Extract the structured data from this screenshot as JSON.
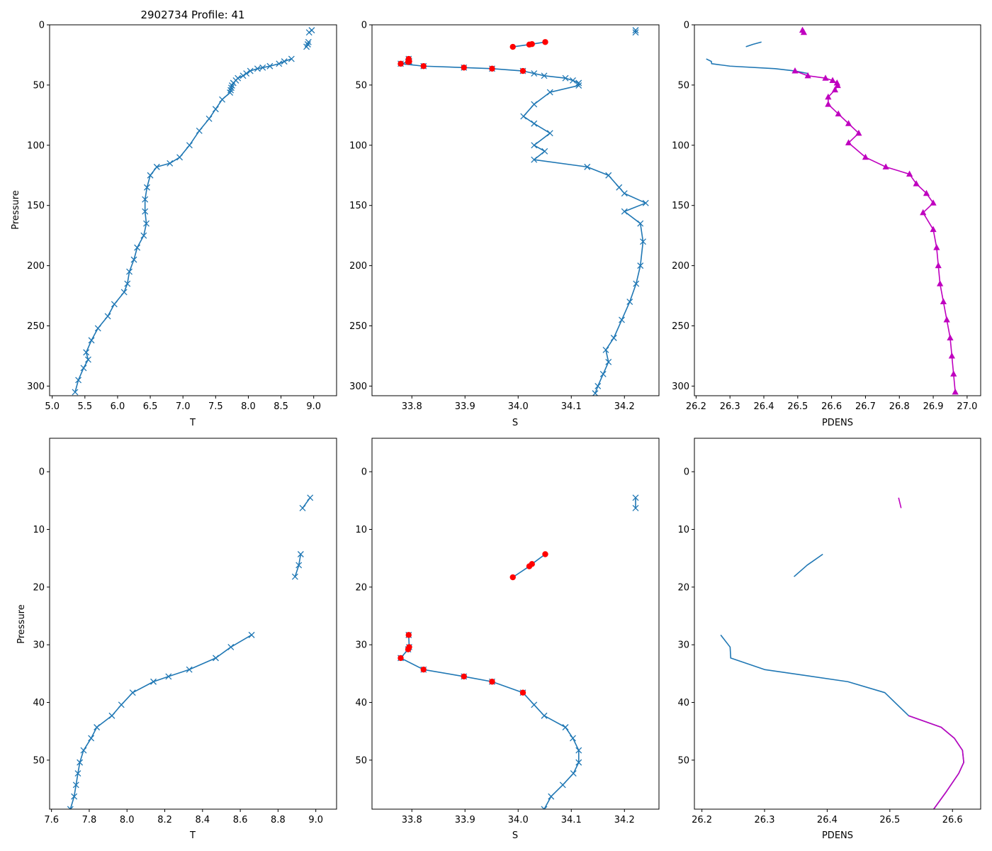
{
  "figure": {
    "colors": {
      "blue": "#1f77b4",
      "red": "#ff0000",
      "magenta": "#bf00bf"
    }
  },
  "chart_data": [
    {
      "id": "top-T",
      "type": "line",
      "title": "2902734 Profile: 41",
      "xlabel": "T",
      "ylabel": "Pressure",
      "xlim": [
        4.96,
        9.35
      ],
      "ylim": [
        308,
        0
      ],
      "y_inverted": true,
      "xticks": [
        5.0,
        5.5,
        6.0,
        6.5,
        7.0,
        7.5,
        8.0,
        8.5,
        9.0
      ],
      "yticks": [
        0,
        50,
        100,
        150,
        200,
        250,
        300
      ],
      "series": [
        {
          "name": "T (upper segment)",
          "marker": "x",
          "color": "#1f77b4",
          "x": [
            8.97,
            8.93
          ],
          "y": [
            4.5,
            6.3
          ]
        },
        {
          "name": "T (segment)",
          "marker": "x",
          "color": "#1f77b4",
          "x": [
            8.92,
            8.91,
            8.89
          ],
          "y": [
            14.3,
            16.2,
            18.2
          ]
        },
        {
          "name": "T",
          "marker": "x",
          "color": "#1f77b4",
          "x": [
            8.66,
            8.55,
            8.47,
            8.33,
            8.22,
            8.14,
            8.03,
            7.97,
            7.92,
            7.84,
            7.81,
            7.77,
            7.75,
            7.74,
            7.73,
            7.72,
            7.6,
            7.5,
            7.4,
            7.25,
            7.1,
            6.95,
            6.8,
            6.6,
            6.5,
            6.45,
            6.42,
            6.42,
            6.44,
            6.4,
            6.3,
            6.25,
            6.18,
            6.15,
            6.1,
            5.95,
            5.85,
            5.7,
            5.6,
            5.52,
            5.55,
            5.48,
            5.4,
            5.35
          ],
          "y": [
            28.3,
            30.4,
            32.3,
            34.3,
            35.5,
            36.4,
            38.3,
            40.4,
            42.3,
            44.3,
            46.2,
            48.3,
            50.4,
            52.3,
            54.3,
            56.3,
            62,
            70,
            78,
            88,
            100,
            110,
            115,
            118,
            125,
            135,
            145,
            155,
            165,
            175,
            185,
            195,
            205,
            215,
            222,
            232,
            242,
            252,
            262,
            272,
            278,
            285,
            295,
            305
          ]
        }
      ]
    },
    {
      "id": "top-S",
      "type": "line",
      "title": "",
      "xlabel": "S",
      "ylabel": "",
      "xlim": [
        33.725,
        34.265
      ],
      "ylim": [
        308,
        0
      ],
      "y_inverted": true,
      "xticks": [
        33.8,
        33.9,
        34.0,
        34.1,
        34.2
      ],
      "yticks": [
        0,
        50,
        100,
        150,
        200,
        250,
        300
      ],
      "series": [
        {
          "name": "S (upper segment)",
          "marker": "x",
          "color": "#1f77b4",
          "x": [
            34.221,
            34.221
          ],
          "y": [
            4.5,
            6.3
          ]
        },
        {
          "name": "S (flagged segment)",
          "marker": "o",
          "color": "#ff0000",
          "x": [
            34.051,
            34.026,
            34.021,
            33.99
          ],
          "y": [
            14.3,
            16.0,
            16.4,
            18.3
          ]
        },
        {
          "name": "S",
          "marker": "x",
          "color": "#1f77b4",
          "x": [
            33.794,
            33.795,
            33.793,
            33.779,
            33.822,
            33.898,
            33.951,
            34.009,
            34.03,
            34.049,
            34.089,
            34.103,
            34.114,
            34.114,
            34.06,
            34.03,
            34.01,
            34.03,
            34.06,
            34.03,
            34.05,
            34.03,
            34.13,
            34.17,
            34.19,
            34.2,
            34.24,
            34.2,
            34.23,
            34.235,
            34.23,
            34.222,
            34.21,
            34.195,
            34.18,
            34.165,
            34.17,
            34.16,
            34.15,
            34.145
          ],
          "y": [
            28.3,
            30.4,
            30.8,
            32.3,
            34.3,
            35.5,
            36.4,
            38.3,
            40.4,
            42.3,
            44.3,
            46.2,
            48.3,
            50.4,
            56,
            66,
            76,
            82,
            90,
            100,
            105,
            112,
            118,
            125,
            135,
            140,
            148,
            155,
            165,
            180,
            200,
            215,
            230,
            245,
            260,
            270,
            280,
            290,
            300,
            306
          ],
          "flagged": [
            0,
            1,
            2,
            3,
            4,
            5,
            6,
            7
          ]
        }
      ]
    },
    {
      "id": "top-PDENS",
      "type": "line",
      "title": "",
      "xlabel": "PDENS",
      "ylabel": "",
      "xlim": [
        26.195,
        27.04
      ],
      "ylim": [
        308,
        0
      ],
      "y_inverted": true,
      "xticks": [
        26.2,
        26.3,
        26.4,
        26.5,
        26.6,
        26.7,
        26.8,
        26.9,
        27.0
      ],
      "yticks": [
        0,
        50,
        100,
        150,
        200,
        250,
        300
      ],
      "series": [
        {
          "name": "PDENS (upper segment)",
          "marker": "^",
          "color": "#bf00bf",
          "x": [
            26.514,
            26.518
          ],
          "y": [
            4.5,
            6.3
          ]
        },
        {
          "name": "PDENS (segment)",
          "marker": "none",
          "color": "#1f77b4",
          "x": [
            26.393,
            26.368,
            26.347
          ],
          "y": [
            14.3,
            16.2,
            18.2
          ]
        },
        {
          "name": "PDENS",
          "marker": "none",
          "color": "#1f77b4",
          "x": [
            26.23,
            26.245,
            26.246,
            26.3,
            26.433,
            26.492,
            26.53
          ],
          "y": [
            28.3,
            30.4,
            32.3,
            34.3,
            36.4,
            38.3,
            40.4
          ]
        },
        {
          "name": "PDENS (deep)",
          "marker": "^",
          "color": "#bf00bf",
          "x": [
            26.492,
            26.53,
            26.582,
            26.603,
            26.616,
            26.618,
            26.61,
            26.59,
            26.59,
            26.62,
            26.65,
            26.68,
            26.65,
            26.7,
            26.76,
            26.83,
            26.85,
            26.88,
            26.9,
            26.87,
            26.9,
            26.91,
            26.915,
            26.92,
            26.93,
            26.94,
            26.95,
            26.955,
            26.96,
            26.965
          ],
          "y": [
            38.3,
            42.3,
            44.3,
            46.2,
            48.3,
            50.4,
            54,
            60,
            66,
            74,
            82,
            90,
            98,
            110,
            118,
            124,
            132,
            140,
            148,
            156,
            170,
            185,
            200,
            215,
            230,
            245,
            260,
            275,
            290,
            305
          ]
        }
      ]
    },
    {
      "id": "bottom-T",
      "type": "line",
      "title": "",
      "xlabel": "T",
      "ylabel": "Pressure",
      "xlim": [
        7.59,
        9.11
      ],
      "ylim": [
        58.5,
        -5.8
      ],
      "y_inverted": true,
      "xticks": [
        7.6,
        7.8,
        8.0,
        8.2,
        8.4,
        8.6,
        8.8,
        9.0
      ],
      "yticks": [
        0,
        10,
        20,
        30,
        40,
        50
      ],
      "series": [
        {
          "name": "T (upper segment)",
          "marker": "x",
          "color": "#1f77b4",
          "x": [
            8.97,
            8.93
          ],
          "y": [
            4.5,
            6.3
          ]
        },
        {
          "name": "T (segment)",
          "marker": "x",
          "color": "#1f77b4",
          "x": [
            8.92,
            8.91,
            8.89
          ],
          "y": [
            14.3,
            16.2,
            18.2
          ]
        },
        {
          "name": "T",
          "marker": "x",
          "color": "#1f77b4",
          "x": [
            8.66,
            8.55,
            8.47,
            8.33,
            8.22,
            8.14,
            8.03,
            7.97,
            7.92,
            7.84,
            7.81,
            7.77,
            7.75,
            7.74,
            7.73,
            7.72,
            7.7
          ],
          "y": [
            28.3,
            30.4,
            32.3,
            34.3,
            35.5,
            36.4,
            38.3,
            40.4,
            42.3,
            44.3,
            46.2,
            48.3,
            50.4,
            52.3,
            54.3,
            56.3,
            58.5
          ]
        }
      ]
    },
    {
      "id": "bottom-S",
      "type": "line",
      "title": "",
      "xlabel": "S",
      "ylabel": "",
      "xlim": [
        33.725,
        34.265
      ],
      "ylim": [
        58.5,
        -5.8
      ],
      "y_inverted": true,
      "xticks": [
        33.8,
        33.9,
        34.0,
        34.1,
        34.2
      ],
      "yticks": [
        0,
        10,
        20,
        30,
        40,
        50
      ],
      "series": [
        {
          "name": "S (upper segment)",
          "marker": "x",
          "color": "#1f77b4",
          "x": [
            34.221,
            34.221
          ],
          "y": [
            4.5,
            6.3
          ]
        },
        {
          "name": "S (flagged segment)",
          "marker": "o",
          "color": "#ff0000",
          "x": [
            34.051,
            34.026,
            34.021,
            33.99
          ],
          "y": [
            14.3,
            16.0,
            16.4,
            18.3
          ]
        },
        {
          "name": "S",
          "marker": "x",
          "color": "#1f77b4",
          "x": [
            33.794,
            33.795,
            33.793,
            33.779,
            33.822,
            33.898,
            33.951,
            34.009,
            34.03,
            34.049,
            34.089,
            34.103,
            34.114,
            34.114,
            34.104,
            34.084,
            34.062,
            34.049
          ],
          "y": [
            28.3,
            30.4,
            30.8,
            32.3,
            34.3,
            35.5,
            36.4,
            38.3,
            40.4,
            42.3,
            44.3,
            46.2,
            48.3,
            50.4,
            52.3,
            54.3,
            56.3,
            58.5
          ],
          "flagged": [
            0,
            1,
            2,
            3,
            4,
            5,
            6,
            7
          ]
        }
      ]
    },
    {
      "id": "bottom-PDENS",
      "type": "line",
      "title": "",
      "xlabel": "PDENS",
      "ylabel": "",
      "xlim": [
        26.188,
        26.645
      ],
      "ylim": [
        58.5,
        -5.8
      ],
      "y_inverted": true,
      "xticks": [
        26.2,
        26.3,
        26.4,
        26.5,
        26.6
      ],
      "yticks": [
        0,
        10,
        20,
        30,
        40,
        50
      ],
      "series": [
        {
          "name": "PDENS (upper segment)",
          "marker": "none",
          "color": "#bf00bf",
          "x": [
            26.514,
            26.518
          ],
          "y": [
            4.5,
            6.3
          ]
        },
        {
          "name": "PDENS (segment)",
          "marker": "none",
          "color": "#1f77b4",
          "x": [
            26.393,
            26.368,
            26.347
          ],
          "y": [
            14.3,
            16.2,
            18.2
          ]
        },
        {
          "name": "PDENS",
          "marker": "none",
          "color": "#1f77b4",
          "x": [
            26.23,
            26.245,
            26.246,
            26.3,
            26.433,
            26.492,
            26.53,
            26.582,
            26.603,
            26.616,
            26.618,
            26.61,
            26.59,
            26.57
          ],
          "y": [
            28.3,
            30.4,
            32.3,
            34.3,
            36.4,
            38.3,
            42.3,
            44.3,
            46.2,
            48.3,
            50.4,
            52.3,
            55.5,
            58.5
          ]
        },
        {
          "name": "PDENS (overlay)",
          "marker": "none",
          "color": "#bf00bf",
          "x": [
            26.53,
            26.582,
            26.603,
            26.616,
            26.618,
            26.61,
            26.59,
            26.57
          ],
          "y": [
            42.3,
            44.3,
            46.2,
            48.3,
            50.4,
            52.3,
            55.5,
            58.5
          ]
        }
      ]
    }
  ]
}
